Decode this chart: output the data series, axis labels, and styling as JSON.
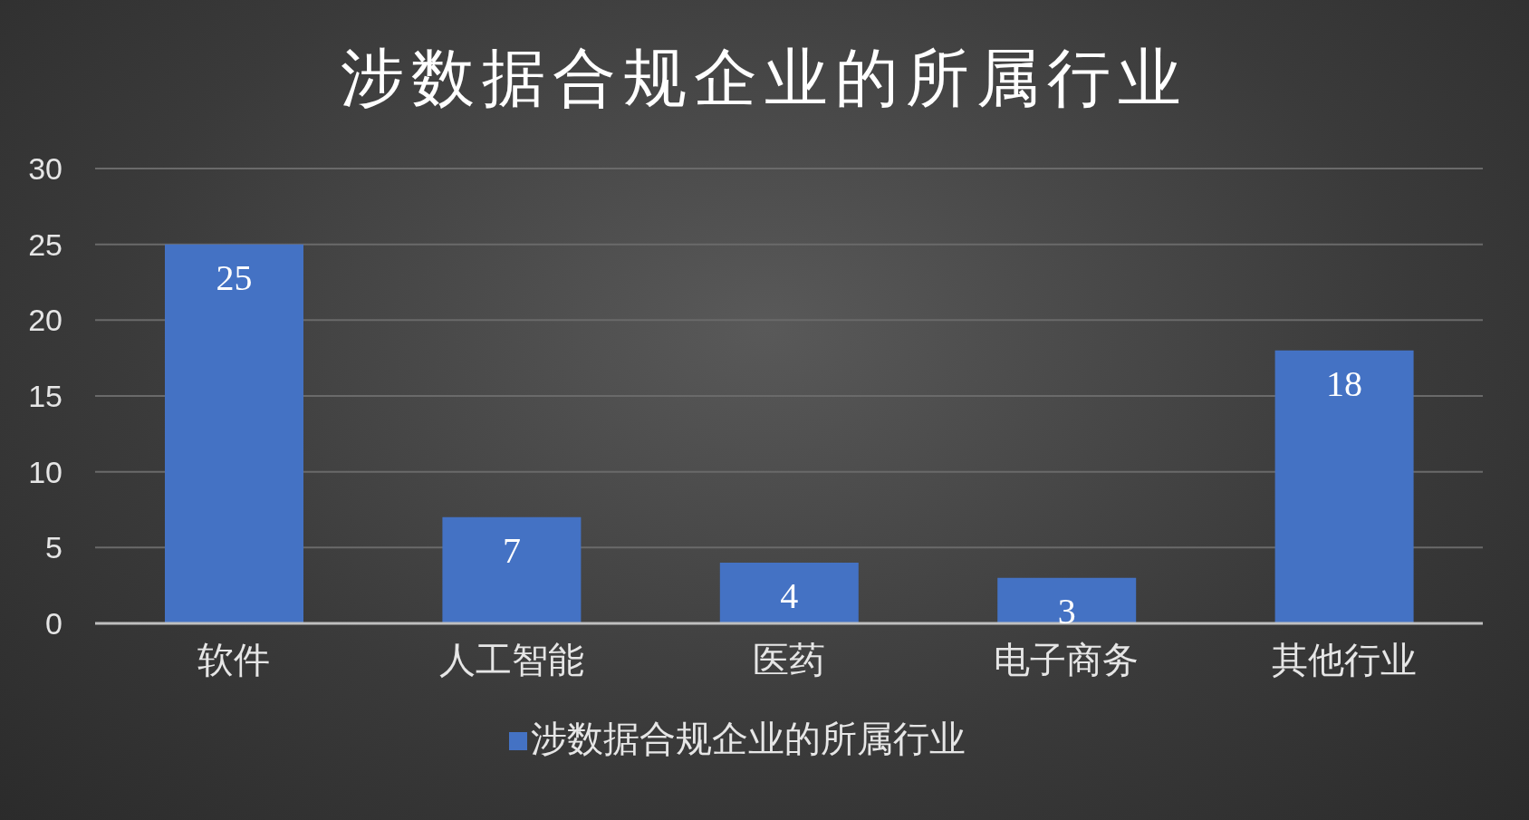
{
  "chart_data": {
    "type": "bar",
    "title": "涉数据合规企业的所属行业",
    "categories": [
      "软件",
      "人工智能",
      "医药",
      "电子商务",
      "其他行业"
    ],
    "series": [
      {
        "name": "涉数据合规企业的所属行业",
        "color": "#4472c4",
        "values": [
          25,
          7,
          4,
          3,
          18
        ]
      }
    ],
    "ylim": [
      0,
      30
    ],
    "yticks": [
      0,
      5,
      10,
      15,
      20,
      25,
      30
    ],
    "grid": "y",
    "legend": "bottom",
    "data_labels": true
  }
}
